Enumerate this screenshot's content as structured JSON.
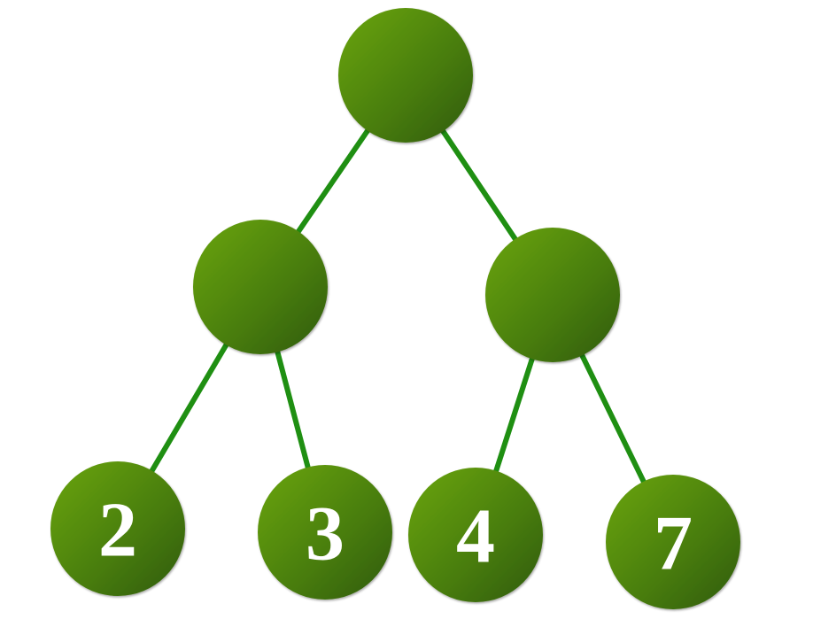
{
  "diagram": {
    "type": "binary-tree",
    "edge_color": "#1f8f12",
    "node_color_light": "#6aa511",
    "node_color_dark": "#2f5a06",
    "label_color": "#ffffff",
    "nodes": [
      {
        "id": "root",
        "label": ""
      },
      {
        "id": "left",
        "label": ""
      },
      {
        "id": "right",
        "label": ""
      },
      {
        "id": "leaf-2",
        "label": "2"
      },
      {
        "id": "leaf-3",
        "label": "3"
      },
      {
        "id": "leaf-4",
        "label": "4"
      },
      {
        "id": "leaf-7",
        "label": "7"
      }
    ],
    "edges": [
      {
        "from": "root",
        "to": "left"
      },
      {
        "from": "root",
        "to": "right"
      },
      {
        "from": "left",
        "to": "leaf-2"
      },
      {
        "from": "left",
        "to": "leaf-3"
      },
      {
        "from": "right",
        "to": "leaf-4"
      },
      {
        "from": "right",
        "to": "leaf-7"
      }
    ]
  }
}
